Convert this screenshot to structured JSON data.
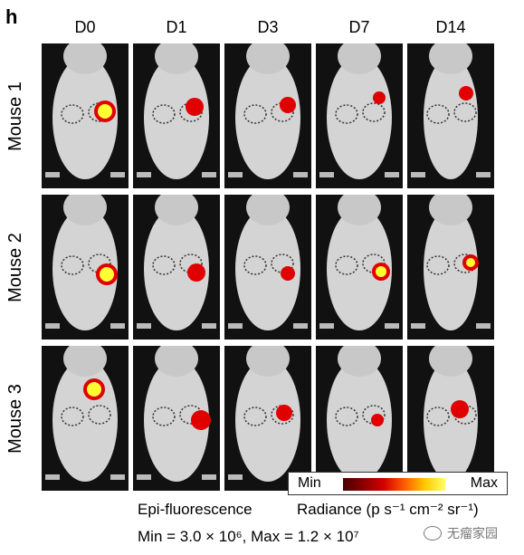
{
  "panel_letter": "h",
  "columns": [
    "D0",
    "D1",
    "D3",
    "D7",
    "D14"
  ],
  "rows": [
    "Mouse 1",
    "Mouse 2",
    "Mouse 3"
  ],
  "colors": {
    "background": "#111111",
    "mouse_fur": "#d4d4d4",
    "signal_dark": "#8b0000",
    "signal_red": "#e00000",
    "signal_yellow": "#ffff33"
  },
  "scale": {
    "min_label": "Min",
    "max_label": "Max",
    "mode_label": "Epi-fluorescence",
    "radiance_label": "Radiance (p s⁻¹ cm⁻² sr⁻¹)",
    "range_label": "Min = 3.0 × 10⁶, Max = 1.2 × 10⁷"
  },
  "watermark": "无瘤家园"
}
